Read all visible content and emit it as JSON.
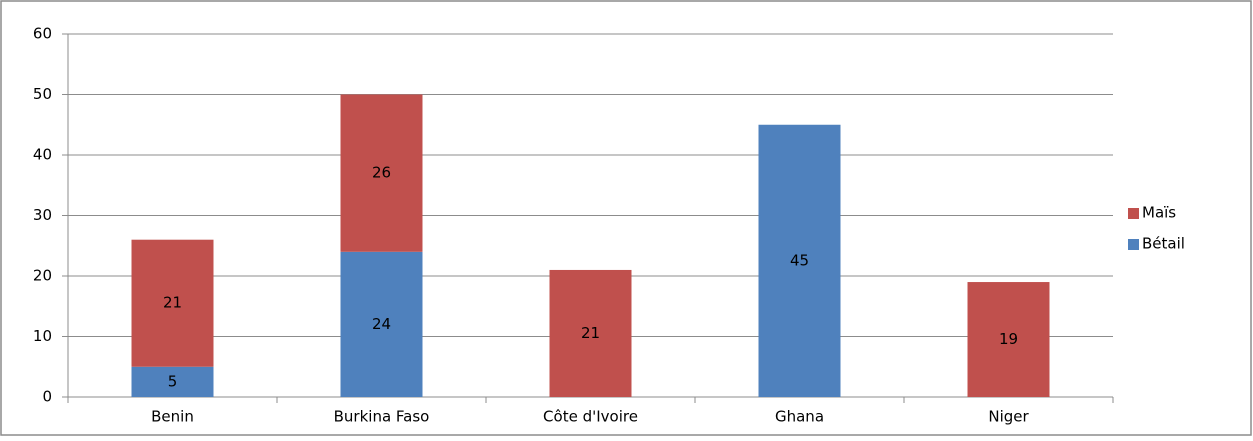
{
  "chart_data": {
    "type": "bar",
    "stacked": true,
    "categories": [
      "Benin",
      "Burkina Faso",
      "Côte d'Ivoire",
      "Ghana",
      "Niger"
    ],
    "series": [
      {
        "name": "Bétail",
        "color": "#4f81bd",
        "values": [
          5,
          24,
          null,
          45,
          null
        ]
      },
      {
        "name": "Maïs",
        "color": "#c0504d",
        "values": [
          21,
          26,
          21,
          null,
          19
        ]
      }
    ],
    "ylim": [
      0,
      60
    ],
    "yticks": [
      0,
      10,
      20,
      30,
      40,
      50,
      60
    ],
    "grid": true,
    "legend": "right"
  }
}
